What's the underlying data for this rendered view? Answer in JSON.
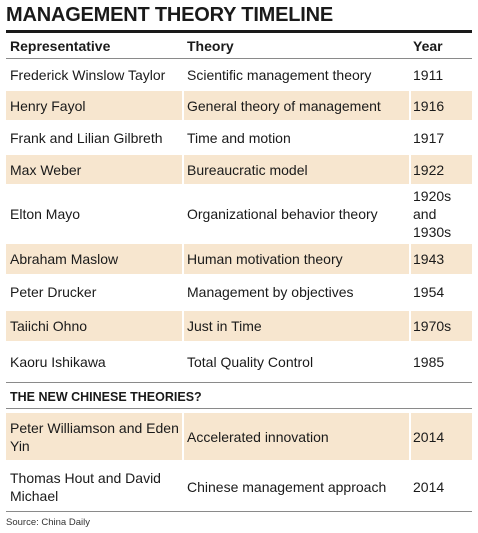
{
  "title": "MANAGEMENT THEORY TIMELINE",
  "headers": {
    "representative": "Representative",
    "theory": "Theory",
    "year": "Year"
  },
  "rows": [
    {
      "representative": "Frederick Winslow Taylor",
      "theory": "Scientific management theory",
      "year": "1911",
      "shaded": false
    },
    {
      "representative": "Henry Fayol",
      "theory": "General theory of management",
      "year": "1916",
      "shaded": true
    },
    {
      "representative": "Frank and Lilian Gilbreth",
      "theory": "Time and motion",
      "year": "1917",
      "shaded": false
    },
    {
      "representative": "Max Weber",
      "theory": "Bureaucratic model",
      "year": "1922",
      "shaded": true
    },
    {
      "representative": "Elton Mayo",
      "theory": "Organizational behavior theory",
      "year": "1920s and 1930s",
      "shaded": false
    },
    {
      "representative": "Abraham Maslow",
      "theory": "Human motivation theory",
      "year": "1943",
      "shaded": true
    },
    {
      "representative": "Peter Drucker",
      "theory": "Management by objectives",
      "year": "1954",
      "shaded": false
    },
    {
      "representative": "Taiichi Ohno",
      "theory": "Just in Time",
      "year": "1970s",
      "shaded": true
    },
    {
      "representative": "Kaoru Ishikawa",
      "theory": "Total Quality Control",
      "year": "1985",
      "shaded": false
    }
  ],
  "section_title": "THE NEW CHINESE THEORIES?",
  "new_rows": [
    {
      "representative": "Peter Williamson and Eden Yin",
      "theory": "Accelerated innovation",
      "year": "2014",
      "shaded": true
    },
    {
      "representative": "Thomas Hout and David Michael",
      "theory": "Chinese management approach",
      "year": "2014",
      "shaded": false
    }
  ],
  "source": "Source: China Daily",
  "colors": {
    "shade": "#f7e6cf",
    "text": "#1a1a1a",
    "rule": "#8a8a8a"
  }
}
